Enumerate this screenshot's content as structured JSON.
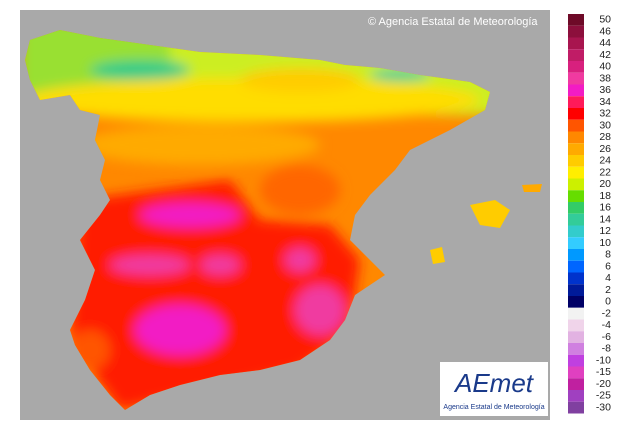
{
  "credit": "© Agencia Estatal de Meteorología",
  "legend": {
    "items": [
      {
        "label": "50",
        "color": "#6e0a28"
      },
      {
        "label": "46",
        "color": "#8c0f3c"
      },
      {
        "label": "44",
        "color": "#a8154f"
      },
      {
        "label": "42",
        "color": "#c01c66"
      },
      {
        "label": "40",
        "color": "#d8207e"
      },
      {
        "label": "38",
        "color": "#f03aa0"
      },
      {
        "label": "36",
        "color": "#f21cc4"
      },
      {
        "label": "34",
        "color": "#ff1a5a"
      },
      {
        "label": "32",
        "color": "#ff0000"
      },
      {
        "label": "30",
        "color": "#ff5500"
      },
      {
        "label": "28",
        "color": "#ff8800"
      },
      {
        "label": "26",
        "color": "#ffaa00"
      },
      {
        "label": "24",
        "color": "#ffcc00"
      },
      {
        "label": "22",
        "color": "#ffee00"
      },
      {
        "label": "20",
        "color": "#ccf000"
      },
      {
        "label": "18",
        "color": "#66dd00"
      },
      {
        "label": "16",
        "color": "#33cc66"
      },
      {
        "label": "14",
        "color": "#33cc99"
      },
      {
        "label": "12",
        "color": "#33cccc"
      },
      {
        "label": "10",
        "color": "#33ccff"
      },
      {
        "label": "8",
        "color": "#0099ff"
      },
      {
        "label": "6",
        "color": "#0066ff"
      },
      {
        "label": "4",
        "color": "#0033cc"
      },
      {
        "label": "2",
        "color": "#001a99"
      },
      {
        "label": "0",
        "color": "#000066"
      },
      {
        "label": "-2",
        "color": "#f2f2f2"
      },
      {
        "label": "-4",
        "color": "#f0d4ea"
      },
      {
        "label": "-6",
        "color": "#e2b2e2"
      },
      {
        "label": "-8",
        "color": "#d080e0"
      },
      {
        "label": "-10",
        "color": "#c040e0"
      },
      {
        "label": "-15",
        "color": "#e040c0"
      },
      {
        "label": "-20",
        "color": "#c020a0"
      },
      {
        "label": "-25",
        "color": "#a040c0"
      },
      {
        "label": "-30",
        "color": "#8040a0"
      }
    ]
  },
  "logo": {
    "name": "AEmet",
    "subtitle": "Agencia Estatal de Meteorología"
  }
}
